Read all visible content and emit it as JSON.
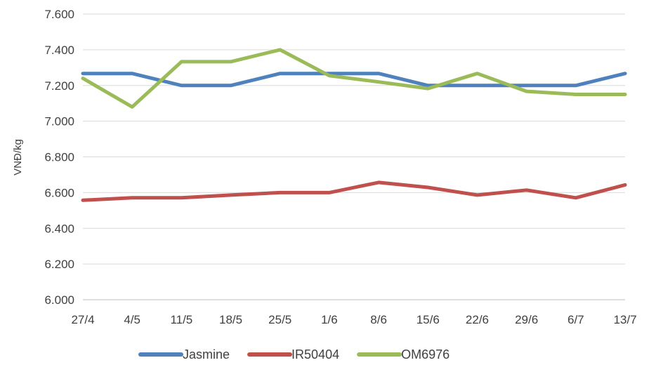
{
  "chart_data": {
    "type": "line",
    "title": "",
    "xlabel": "",
    "ylabel": "VNĐ/kg",
    "categories": [
      "27/4",
      "4/5",
      "11/5",
      "18/5",
      "25/5",
      "1/6",
      "8/6",
      "15/6",
      "22/6",
      "29/6",
      "6/7",
      "13/7"
    ],
    "ylim": [
      6000,
      7600
    ],
    "yticks": [
      6000,
      6200,
      6400,
      6600,
      6800,
      7000,
      7200,
      7400,
      7600
    ],
    "ytick_labels": [
      "6.000",
      "6.200",
      "6.400",
      "6.600",
      "6.800",
      "7.000",
      "7.200",
      "7.400",
      "7.600"
    ],
    "grid": true,
    "legend_position": "bottom",
    "series": [
      {
        "name": "Jasmine",
        "color": "#4f81bd",
        "values": [
          7267,
          7267,
          7200,
          7200,
          7267,
          7267,
          7267,
          7200,
          7200,
          7200,
          7200,
          7267
        ]
      },
      {
        "name": "IR50404",
        "color": "#c0504d",
        "values": [
          6557,
          6571,
          6571,
          6586,
          6600,
          6600,
          6657,
          6629,
          6586,
          6614,
          6571,
          6643
        ]
      },
      {
        "name": "OM6976",
        "color": "#9bbb59",
        "values": [
          7240,
          7080,
          7333,
          7333,
          7400,
          7255,
          7220,
          7183,
          7267,
          7167,
          7150,
          7150
        ]
      }
    ]
  }
}
